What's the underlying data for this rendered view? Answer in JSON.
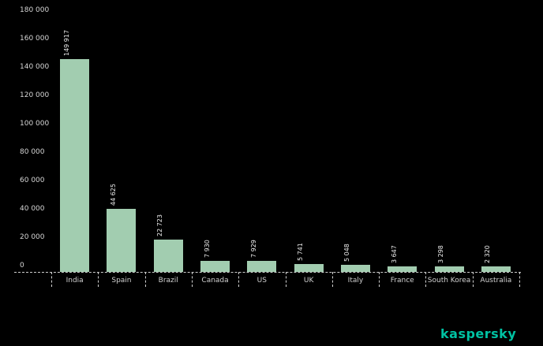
{
  "background_color": "#000000",
  "chart_data": {
    "type": "bar",
    "title": "",
    "categories": [
      "India",
      "Spain",
      "Brazil",
      "Canada",
      "US",
      "UK",
      "Italy",
      "France",
      "South Korea",
      "Australia"
    ],
    "values": [
      149917,
      44625,
      22723,
      7930,
      7929,
      5741,
      5048,
      3647,
      3298,
      2320
    ],
    "value_labels": [
      "149 917",
      "44 625",
      "22 723",
      "7 930",
      "7 929",
      "5 741",
      "5 048",
      "3 647",
      "3 298",
      "2 320"
    ],
    "y_ticks": [
      {
        "value": 180000,
        "label": "180 000"
      },
      {
        "value": 160000,
        "label": "160 000"
      },
      {
        "value": 140000,
        "label": "140 000"
      },
      {
        "value": 120000,
        "label": "120 000"
      },
      {
        "value": 100000,
        "label": "100 000"
      },
      {
        "value": 80000,
        "label": "80 000"
      },
      {
        "value": 60000,
        "label": "60 000"
      },
      {
        "value": 40000,
        "label": "40 000"
      },
      {
        "value": 20000,
        "label": "20 000"
      },
      {
        "value": 0,
        "label": "0"
      }
    ],
    "ylim": [
      0,
      180000
    ],
    "grid": false,
    "legend": "none",
    "bar_color": "#a2cdb0",
    "axis_color": "#cfcfcf",
    "value_label_rotation": -90
  },
  "branding": {
    "logo_text": "kaspersky",
    "logo_color": "#00c2a3"
  }
}
